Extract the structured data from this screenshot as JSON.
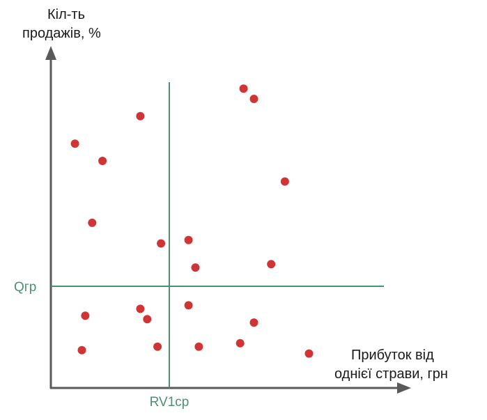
{
  "chart_data": {
    "type": "scatter",
    "ylabel_lines": [
      "Кіл-ть",
      "продажів, %"
    ],
    "xlabel_lines": [
      "Прибуток від",
      "однієї страви, грн"
    ],
    "xlim": [
      0,
      100
    ],
    "ylim": [
      0,
      100
    ],
    "reference_lines": {
      "vertical": {
        "label": "RV1cp",
        "x": 36
      },
      "horizontal": {
        "label": "Qгр",
        "y": 30
      }
    },
    "points": [
      {
        "x": 7,
        "y": 71
      },
      {
        "x": 15,
        "y": 66
      },
      {
        "x": 26,
        "y": 79
      },
      {
        "x": 56,
        "y": 87
      },
      {
        "x": 59,
        "y": 84
      },
      {
        "x": 68,
        "y": 60
      },
      {
        "x": 12,
        "y": 48
      },
      {
        "x": 32,
        "y": 42
      },
      {
        "x": 40,
        "y": 43
      },
      {
        "x": 42,
        "y": 35
      },
      {
        "x": 64,
        "y": 36
      },
      {
        "x": 10,
        "y": 21
      },
      {
        "x": 26,
        "y": 23
      },
      {
        "x": 28,
        "y": 20
      },
      {
        "x": 40,
        "y": 24
      },
      {
        "x": 59,
        "y": 19
      },
      {
        "x": 9,
        "y": 11
      },
      {
        "x": 31,
        "y": 12
      },
      {
        "x": 43,
        "y": 12
      },
      {
        "x": 55,
        "y": 13
      },
      {
        "x": 75,
        "y": 10
      }
    ],
    "colors": {
      "axis": "#595959",
      "reference": "#4e8f72",
      "point": "#d03535"
    },
    "grid": false
  }
}
